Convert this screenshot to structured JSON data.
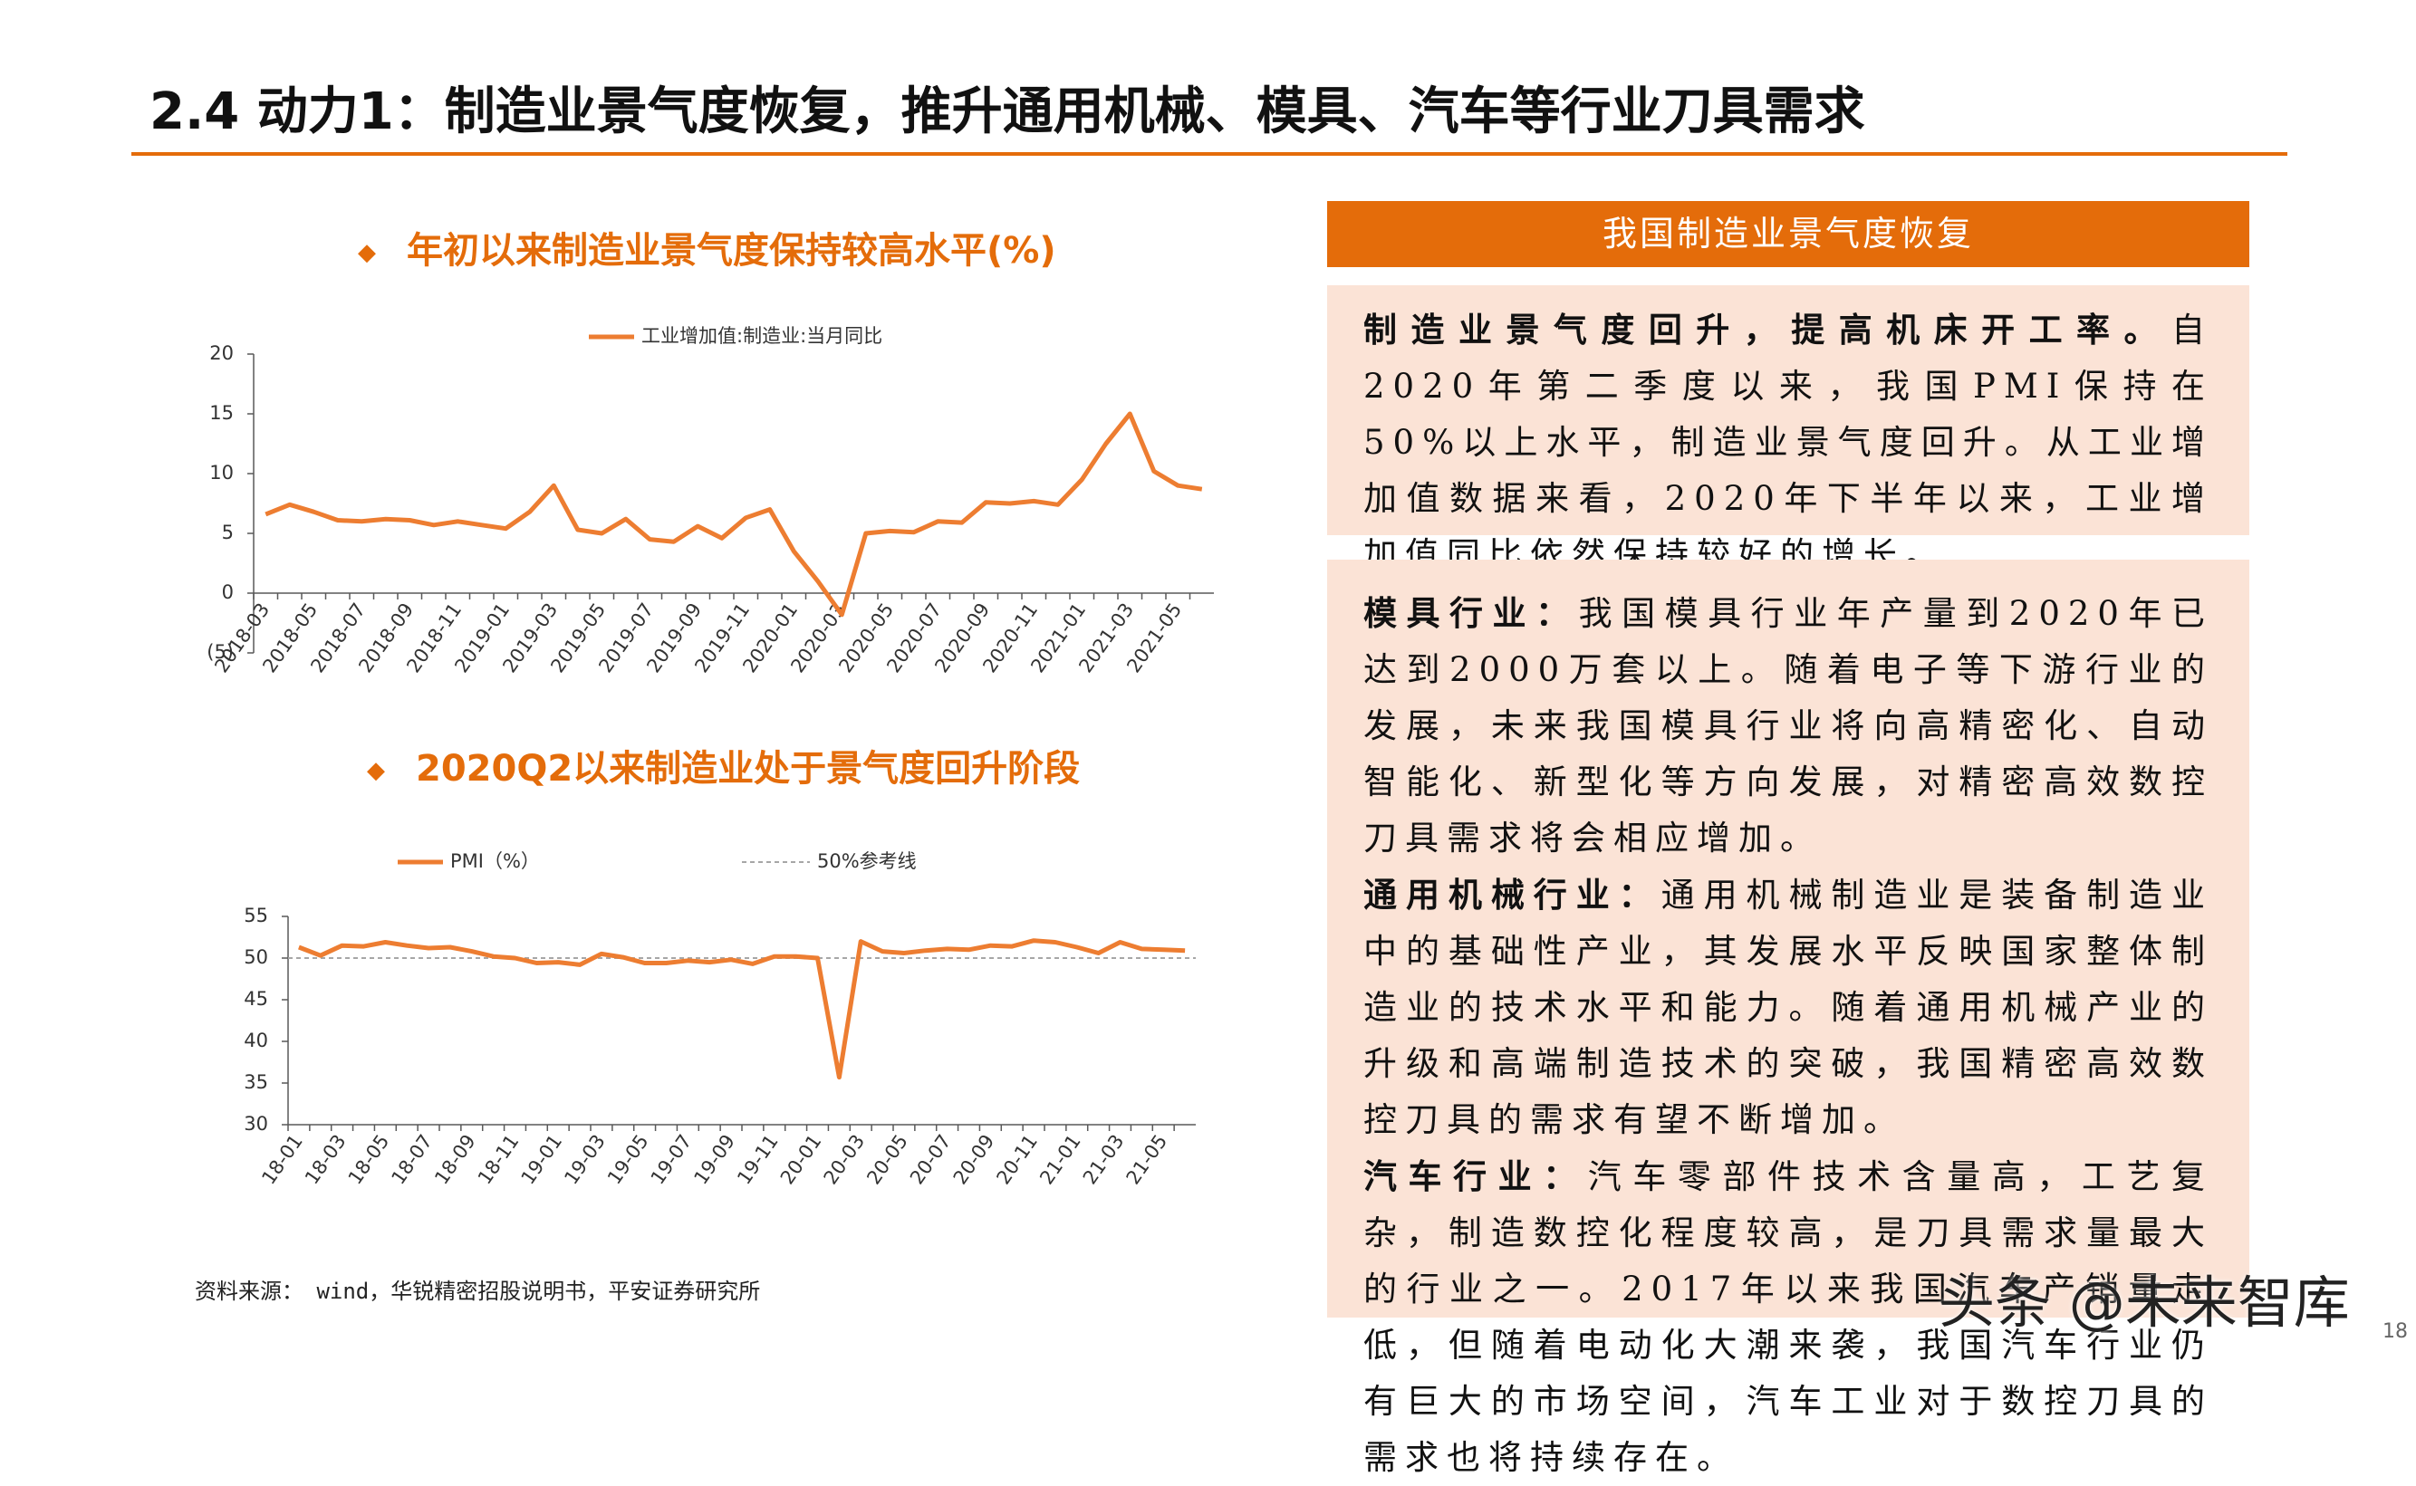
{
  "header": {
    "title": "2.4 动力1：制造业景气度恢复，推升通用机械、模具、汽车等行业刀具需求"
  },
  "chart_data": [
    {
      "type": "line",
      "title": "年初以来制造业景气度保持较高水平(%)",
      "categories": [
        "2018-03",
        null,
        "2018-05",
        null,
        "2018-07",
        null,
        "2018-09",
        null,
        "2018-11",
        null,
        "2019-01",
        null,
        "2019-03",
        null,
        "2019-05",
        null,
        "2019-07",
        null,
        "2019-09",
        null,
        "2019-11",
        null,
        "2020-01",
        null,
        "2020-03",
        null,
        "2020-05",
        null,
        "2020-07",
        null,
        "2020-09",
        null,
        "2020-11",
        null,
        "2021-01",
        null,
        "2021-03",
        null,
        "2021-05",
        null
      ],
      "series": [
        {
          "name": "工业增加值:制造业:当月同比",
          "color": "#ED7D31",
          "values": [
            6.6,
            7.4,
            6.8,
            6.1,
            6.0,
            6.2,
            6.1,
            5.7,
            6.0,
            5.7,
            5.4,
            6.8,
            9.0,
            5.3,
            5.0,
            6.2,
            4.5,
            4.3,
            5.6,
            4.6,
            6.3,
            7.0,
            3.5,
            1.0,
            -1.8,
            5.0,
            5.2,
            5.1,
            6.0,
            5.9,
            7.6,
            7.5,
            7.7,
            7.4,
            9.5,
            12.5,
            15.0,
            10.2,
            9.0,
            8.7
          ]
        }
      ],
      "ylim": [
        -5,
        20
      ],
      "yticks": [
        {
          "value": -5,
          "label": "(5)"
        },
        0,
        5,
        10,
        15,
        20
      ]
    },
    {
      "type": "line",
      "title": "2020Q2以来制造业处于景气度回升阶段",
      "categories": [
        "18-01",
        null,
        "18-03",
        null,
        "18-05",
        null,
        "18-07",
        null,
        "18-09",
        null,
        "18-11",
        null,
        "19-01",
        null,
        "19-03",
        null,
        "19-05",
        null,
        "19-07",
        null,
        "19-09",
        null,
        "19-11",
        null,
        "20-01",
        null,
        "20-03",
        null,
        "20-05",
        null,
        "20-07",
        null,
        "20-09",
        null,
        "20-11",
        null,
        "21-01",
        null,
        "21-03",
        null,
        "21-05",
        null
      ],
      "series": [
        {
          "name": "PMI（%）",
          "color": "#ED7D31",
          "values": [
            51.3,
            50.3,
            51.5,
            51.4,
            51.9,
            51.5,
            51.2,
            51.3,
            50.8,
            50.2,
            50.0,
            49.4,
            49.5,
            49.2,
            50.5,
            50.1,
            49.4,
            49.4,
            49.7,
            49.5,
            49.8,
            49.3,
            50.2,
            50.2,
            50.0,
            35.7,
            52.0,
            50.8,
            50.6,
            50.9,
            51.1,
            51.0,
            51.5,
            51.4,
            52.1,
            51.9,
            51.3,
            50.6,
            51.9,
            51.1,
            51.0,
            50.9
          ]
        }
      ],
      "reference": {
        "name": "50%参考线",
        "value": 50,
        "color": "#A6A6A6"
      },
      "ylim": [
        30,
        55
      ],
      "yticks": [
        30,
        35,
        40,
        45,
        50,
        55
      ]
    }
  ],
  "panel": {
    "title": "我国制造业景气度恢复",
    "blocks": [
      [
        {
          "lead": "制造业景气度回升，提高机床开工率。",
          "text": "自2020年第二季度以来，我国PMI保持在50%以上水平，制造业景气度回升。从工业增加值数据来看，2020年下半年以来，工业增加值同比依然保持较好的增长。"
        }
      ],
      [
        {
          "lead": "模具行业：",
          "text": "我国模具行业年产量到2020年已达到2000万套以上。随着电子等下游行业的发展，未来我国模具行业将向高精密化、自动智能化、新型化等方向发展，对精密高效数控刀具需求将会相应增加。"
        },
        {
          "lead": "通用机械行业：",
          "text": "通用机械制造业是装备制造业中的基础性产业，其发展水平反映国家整体制造业的技术水平和能力。随着通用机械产业的升级和高端制造技术的突破，我国精密高效数控刀具的需求有望不断增加。"
        },
        {
          "lead": "汽车行业：",
          "text": "汽车零部件技术含量高，工艺复杂，制造数控化程度较高，是刀具需求量最大的行业之一。2017年以来我国汽车产销量走低，但随着电动化大潮来袭，我国汽车行业仍有巨大的市场空间，汽车工业对于数控刀具的需求也将持续存在。"
        }
      ]
    ]
  },
  "source": "资料来源： wind，华锐精密招股说明书，平安证券研究所",
  "watermark": "头条 @未来智库",
  "page_number": "18"
}
